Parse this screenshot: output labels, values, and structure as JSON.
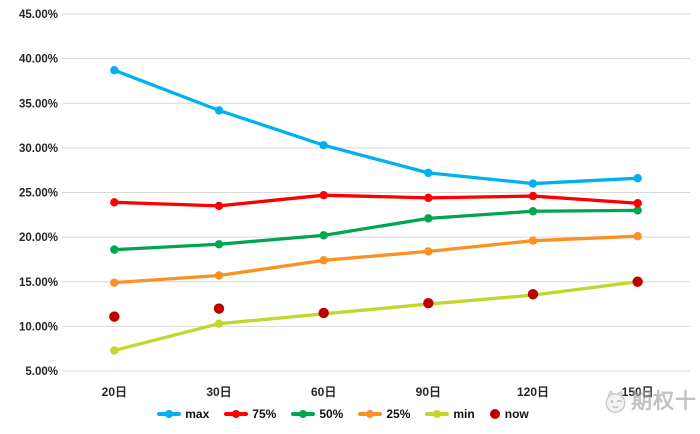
{
  "chart_data": {
    "type": "line",
    "categories": [
      "20日",
      "30日",
      "60日",
      "90日",
      "120日",
      "150日"
    ],
    "series": [
      {
        "name": "max",
        "color": "#00B0F0",
        "values": [
          38.7,
          34.2,
          30.3,
          27.2,
          26.0,
          26.6
        ]
      },
      {
        "name": "75%",
        "color": "#FE0000",
        "values": [
          23.9,
          23.5,
          24.7,
          24.4,
          24.6,
          23.8
        ]
      },
      {
        "name": "50%",
        "color": "#00A550",
        "values": [
          18.6,
          19.2,
          20.2,
          22.1,
          22.9,
          23.0
        ]
      },
      {
        "name": "25%",
        "color": "#FA9123",
        "values": [
          14.9,
          15.7,
          17.4,
          18.4,
          19.6,
          20.1
        ]
      },
      {
        "name": "min",
        "color": "#C3D62D",
        "values": [
          7.3,
          10.3,
          11.4,
          12.5,
          13.5,
          15.0
        ]
      },
      {
        "name": "now",
        "color": "#BE0000",
        "values": [
          11.1,
          12.0,
          11.5,
          12.6,
          13.6,
          15.0
        ],
        "line": false
      }
    ],
    "ylim": [
      5,
      45
    ],
    "y_ticks": [
      {
        "label": "45.00%",
        "value": 45
      },
      {
        "label": "40.00%",
        "value": 40
      },
      {
        "label": "35.00%",
        "value": 35
      },
      {
        "label": "30.00%",
        "value": 30
      },
      {
        "label": "25.00%",
        "value": 25
      },
      {
        "label": "20.00%",
        "value": 20
      },
      {
        "label": "15.00%",
        "value": 15
      },
      {
        "label": "10.00%",
        "value": 10
      },
      {
        "label": "5.00%",
        "value": 5
      }
    ],
    "grid": true,
    "gridline_color": "#D9D9D9",
    "legend_position": "bottom"
  },
  "watermark": {
    "text": "期权十"
  }
}
